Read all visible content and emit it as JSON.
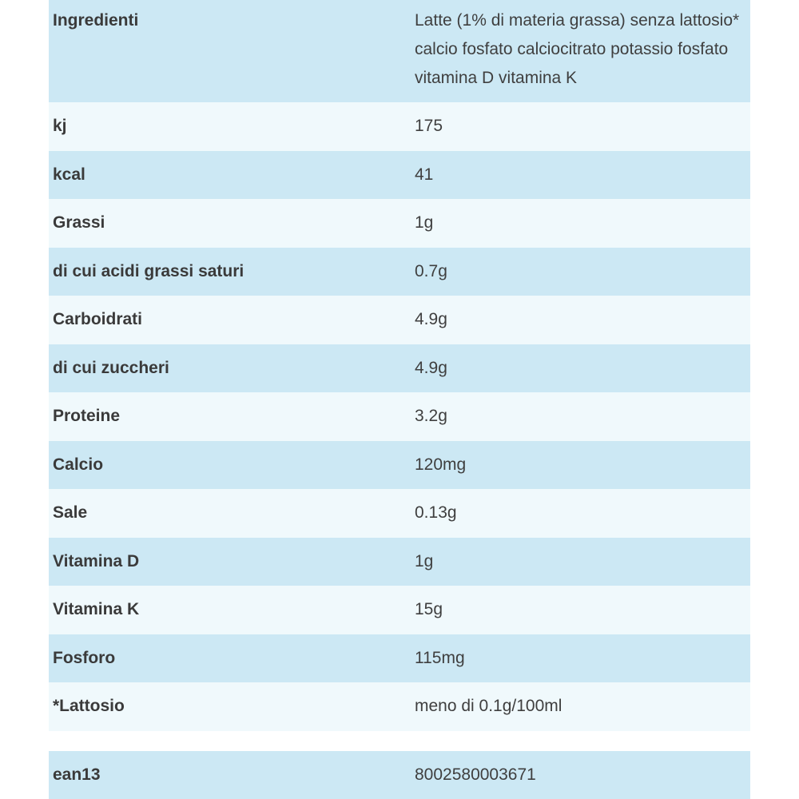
{
  "ingredients": {
    "label": "Ingredienti",
    "value": "Latte (1% di materia grassa) senza lattosio* calcio fosfato calciocitrato potassio fosfato vitamina D vitamina K"
  },
  "nutrition_rows": [
    {
      "label": "kj",
      "value": "175"
    },
    {
      "label": "kcal",
      "value": "41"
    },
    {
      "label": "Grassi",
      "value": "1g"
    },
    {
      "label": "di cui acidi grassi saturi",
      "value": "0.7g"
    },
    {
      "label": "Carboidrati",
      "value": "4.9g"
    },
    {
      "label": "di cui zuccheri",
      "value": "4.9g"
    },
    {
      "label": "Proteine",
      "value": "3.2g"
    },
    {
      "label": "Calcio",
      "value": "120mg"
    },
    {
      "label": "Sale",
      "value": "0.13g"
    },
    {
      "label": "Vitamina D",
      "value": "1g"
    },
    {
      "label": "Vitamina K",
      "value": "15g"
    },
    {
      "label": "Fosforo",
      "value": "115mg"
    },
    {
      "label": "*Lattosio",
      "value": "meno di 0.1g/100ml"
    }
  ],
  "ean": {
    "label": "ean13",
    "value": "8002580003671"
  },
  "colors": {
    "row_blue": "#cce8f4",
    "row_light": "#f0f9fc",
    "text": "#3a3a3a"
  }
}
